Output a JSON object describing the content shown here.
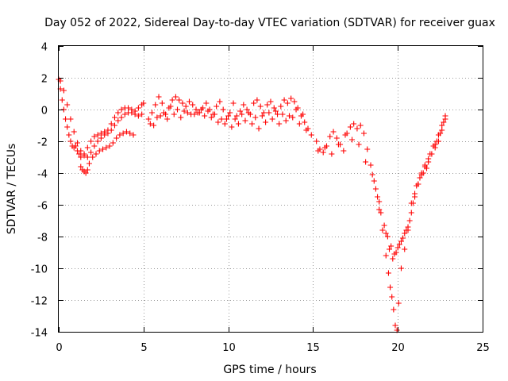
{
  "chart_data": {
    "type": "scatter",
    "title": "Day 052 of 2022, Sidereal Day-to-day VTEC variation (SDTVAR) for receiver guax",
    "xlabel": "GPS time / hours",
    "ylabel": "SDTVAR / TECUs",
    "xlim": [
      0,
      25
    ],
    "ylim": [
      -14,
      4
    ],
    "xticks": [
      "0",
      "5",
      "10",
      "15",
      "20",
      "25"
    ],
    "yticks": [
      "-14",
      "-12",
      "-10",
      "-8",
      "-6",
      "-4",
      "-2",
      "0",
      "2",
      "4"
    ],
    "grid": true,
    "marker": "+",
    "marker_color": "#ff0000",
    "series": [
      {
        "name": "SDTVAR",
        "color": "#ff0000",
        "x": [
          0.0,
          0.1,
          0.2,
          0.3,
          0.4,
          0.5,
          0.6,
          0.7,
          0.8,
          0.9,
          1.0,
          1.1,
          1.2,
          1.3,
          1.5,
          1.7,
          1.9,
          2.1,
          2.3,
          2.5,
          2.7,
          2.9,
          3.1,
          3.3,
          3.5,
          3.7,
          3.9,
          4.1,
          4.3,
          4.5,
          4.7,
          4.9,
          5.0,
          0.1,
          0.3,
          0.5,
          0.7,
          0.9,
          1.1,
          1.3,
          1.5,
          1.7,
          1.9,
          2.1,
          2.3,
          2.5,
          2.7,
          2.9,
          3.1,
          3.3,
          3.5,
          3.7,
          3.9,
          4.1,
          4.3,
          4.5,
          4.7,
          4.9,
          1.3,
          1.4,
          1.5,
          1.6,
          1.7,
          1.8,
          2.0,
          2.2,
          2.4,
          2.6,
          2.8,
          3.0,
          3.2,
          3.4,
          3.6,
          3.8,
          4.0,
          4.2,
          4.4,
          5.3,
          5.5,
          5.7,
          5.9,
          6.1,
          6.3,
          6.5,
          6.7,
          6.9,
          7.1,
          7.3,
          7.5,
          7.7,
          7.9,
          8.1,
          8.3,
          8.5,
          8.7,
          8.9,
          9.1,
          9.3,
          9.5,
          9.7,
          9.9,
          10.1,
          10.3,
          10.5,
          10.7,
          10.9,
          11.1,
          11.3,
          11.5,
          11.7,
          11.9,
          12.1,
          12.3,
          12.5,
          12.7,
          12.9,
          13.1,
          13.3,
          13.5,
          13.7,
          13.9,
          14.1,
          14.3,
          14.5,
          14.7,
          14.9,
          5.4,
          5.8,
          6.2,
          6.6,
          7.0,
          7.4,
          7.8,
          8.2,
          8.6,
          9.0,
          9.4,
          9.8,
          10.2,
          10.6,
          11.0,
          11.4,
          11.8,
          12.2,
          12.6,
          13.0,
          13.4,
          13.8,
          14.2,
          14.6,
          5.6,
          6.0,
          6.4,
          6.8,
          7.2,
          7.6,
          8.0,
          8.4,
          8.8,
          9.2,
          9.6,
          10.0,
          10.4,
          10.8,
          11.2,
          11.6,
          12.0,
          12.4,
          12.8,
          13.2,
          13.6,
          14.0,
          14.4,
          15.2,
          15.4,
          15.6,
          15.8,
          16.0,
          16.2,
          16.4,
          16.6,
          16.8,
          17.0,
          17.2,
          17.4,
          17.6,
          17.8,
          18.0,
          18.2,
          18.4,
          18.6,
          18.8,
          19.0,
          19.2,
          19.4,
          19.6,
          19.8,
          20.0,
          20.2,
          20.4,
          20.6,
          20.8,
          21.0,
          21.2,
          21.4,
          21.6,
          21.8,
          22.0,
          22.2,
          22.4,
          22.6,
          22.8,
          15.3,
          15.7,
          16.1,
          16.5,
          16.9,
          17.3,
          17.7,
          18.1,
          18.5,
          18.9,
          19.3,
          19.5,
          19.7,
          19.9,
          20.1,
          20.3,
          20.5,
          20.7,
          20.9,
          21.1,
          21.3,
          21.5,
          21.7,
          21.9,
          22.1,
          22.3,
          22.5,
          22.7,
          18.7,
          18.9,
          19.1,
          19.3,
          19.45,
          19.55,
          19.65,
          19.75,
          19.85,
          19.95,
          20.05,
          20.2,
          20.4,
          20.6,
          20.8,
          21.0,
          21.2,
          21.4,
          21.6,
          21.8,
          22.0,
          22.2,
          22.4,
          22.6,
          22.8
        ],
        "y": [
          1.9,
          1.3,
          0.6,
          0.0,
          -0.6,
          -1.1,
          -1.6,
          -2.0,
          -2.3,
          -2.4,
          -2.3,
          -2.6,
          -2.8,
          -3.0,
          -2.8,
          -2.4,
          -2.0,
          -1.7,
          -1.6,
          -1.5,
          -1.4,
          -1.3,
          -0.9,
          -0.5,
          -0.2,
          0.0,
          0.1,
          0.1,
          0.0,
          -0.1,
          0.1,
          0.3,
          0.4,
          1.8,
          1.2,
          0.3,
          -0.6,
          -1.4,
          -2.1,
          -2.6,
          -2.9,
          -3.0,
          -2.7,
          -2.3,
          -2.0,
          -1.8,
          -1.6,
          -1.5,
          -1.3,
          -1.0,
          -0.7,
          -0.5,
          -0.3,
          -0.2,
          -0.2,
          -0.3,
          -0.4,
          -0.3,
          -3.6,
          -3.8,
          -3.9,
          -4.0,
          -3.8,
          -3.4,
          -3.0,
          -2.8,
          -2.6,
          -2.5,
          -2.4,
          -2.3,
          -2.1,
          -1.8,
          -1.6,
          -1.5,
          -1.4,
          -1.5,
          -1.6,
          -0.6,
          -0.2,
          0.3,
          0.8,
          0.4,
          -0.3,
          0.1,
          0.6,
          0.8,
          0.6,
          0.4,
          0.2,
          0.5,
          0.3,
          0.0,
          -0.2,
          0.1,
          0.4,
          0.0,
          -0.3,
          0.2,
          0.5,
          0.0,
          -0.6,
          -0.2,
          0.4,
          -0.4,
          -0.1,
          0.3,
          0.0,
          -0.3,
          0.4,
          0.6,
          0.2,
          -0.2,
          0.3,
          0.5,
          0.1,
          -0.3,
          0.2,
          0.6,
          0.4,
          0.7,
          0.5,
          0.1,
          -0.4,
          -0.8,
          -1.2,
          -1.6,
          -0.9,
          -0.5,
          -0.2,
          0.2,
          0.0,
          -0.1,
          -0.3,
          -0.2,
          -0.4,
          -0.5,
          -0.8,
          -0.9,
          -1.1,
          -0.9,
          -0.7,
          -0.9,
          -1.2,
          -0.8,
          -0.6,
          -0.9,
          -0.7,
          -0.5,
          -0.9,
          -1.3,
          -1.0,
          -0.4,
          -0.6,
          -0.3,
          -0.5,
          -0.2,
          -0.3,
          0.0,
          -0.1,
          -0.3,
          -0.6,
          -0.4,
          -0.6,
          -0.3,
          -0.2,
          -0.5,
          -0.4,
          -0.2,
          -0.1,
          -0.3,
          -0.4,
          0.0,
          -0.3,
          -2.0,
          -2.5,
          -2.7,
          -2.3,
          -1.7,
          -1.4,
          -1.8,
          -2.2,
          -2.6,
          -1.5,
          -1.1,
          -0.9,
          -1.2,
          -1.0,
          -1.5,
          -2.5,
          -3.5,
          -4.5,
          -5.5,
          -6.5,
          -7.3,
          -8.0,
          -8.6,
          -9.1,
          -8.7,
          -8.3,
          -7.8,
          -7.4,
          -6.5,
          -5.5,
          -4.7,
          -4.0,
          -3.5,
          -3.1,
          -2.8,
          -2.2,
          -1.6,
          -1.0,
          -0.4,
          -2.6,
          -2.4,
          -2.8,
          -2.2,
          -1.6,
          -1.9,
          -2.2,
          -3.3,
          -4.1,
          -5.8,
          -7.8,
          -8.8,
          -9.4,
          -9.0,
          -8.5,
          -8.1,
          -7.6,
          -7.0,
          -5.9,
          -4.8,
          -4.3,
          -4.0,
          -3.7,
          -2.8,
          -2.3,
          -2.0,
          -1.5,
          -0.8,
          -5.0,
          -6.3,
          -7.6,
          -9.2,
          -10.3,
          -11.2,
          -11.8,
          -12.6,
          -13.6,
          -13.9,
          -12.2,
          -10.0,
          -8.8,
          -7.6,
          -5.9,
          -5.3,
          -4.7,
          -4.1,
          -3.6,
          -3.3,
          -2.8,
          -2.4,
          -2.0,
          -1.3,
          -0.6
        ]
      }
    ]
  }
}
